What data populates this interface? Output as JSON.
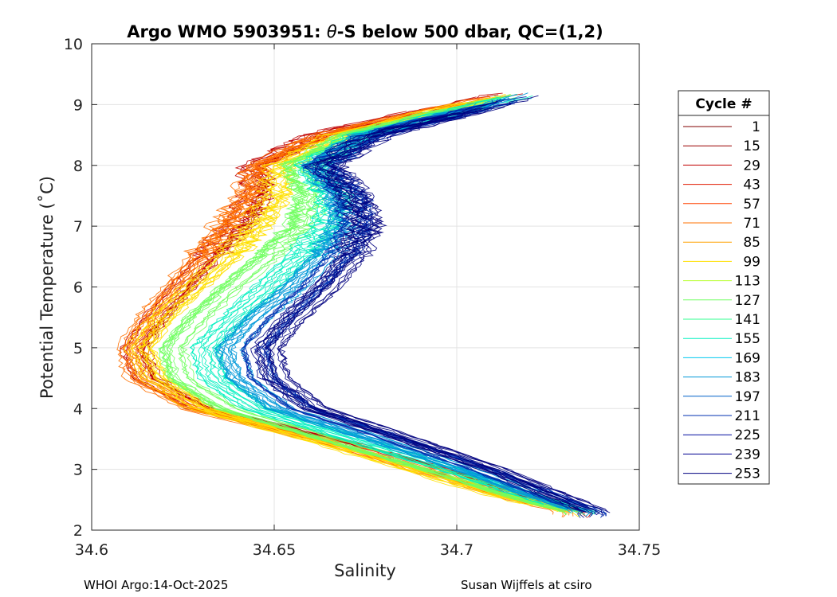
{
  "chart_data": {
    "type": "line",
    "title_prefix": "Argo WMO 5903951: ",
    "title_symbol": "θ",
    "title_suffix": "-S below 500 dbar,  QC=(1,2)",
    "xlabel": "Salinity",
    "ylabel": "Potential Temperature (˚C)",
    "xlim": [
      34.6,
      34.75
    ],
    "ylim": [
      2,
      10
    ],
    "xticks": [
      34.6,
      34.65,
      34.7,
      34.75
    ],
    "xtick_labels": [
      "34.6",
      "34.65",
      "34.7",
      "34.75"
    ],
    "yticks": [
      2,
      3,
      4,
      5,
      6,
      7,
      8,
      9,
      10
    ],
    "ytick_labels": [
      "2",
      "3",
      "4",
      "5",
      "6",
      "7",
      "8",
      "9",
      "10"
    ],
    "grid": true,
    "legend_title": "Cycle #",
    "legend_position": "outside-right",
    "legend": [
      {
        "label": "1",
        "color": "#800000"
      },
      {
        "label": "15",
        "color": "#9a0000"
      },
      {
        "label": "29",
        "color": "#c00000"
      },
      {
        "label": "43",
        "color": "#e01a00"
      },
      {
        "label": "57",
        "color": "#ff4000"
      },
      {
        "label": "71",
        "color": "#ff7000"
      },
      {
        "label": "85",
        "color": "#ffa000"
      },
      {
        "label": "99",
        "color": "#ffe000"
      },
      {
        "label": "113",
        "color": "#b8ff30"
      },
      {
        "label": "127",
        "color": "#70ff60"
      },
      {
        "label": "141",
        "color": "#30ff90"
      },
      {
        "label": "155",
        "color": "#00f0c0"
      },
      {
        "label": "169",
        "color": "#00c8f0"
      },
      {
        "label": "183",
        "color": "#0098d8"
      },
      {
        "label": "197",
        "color": "#0060c8"
      },
      {
        "label": "211",
        "color": "#0030b0"
      },
      {
        "label": "225",
        "color": "#000ca0"
      },
      {
        "label": "239",
        "color": "#000090"
      },
      {
        "label": "253",
        "color": "#000080"
      }
    ],
    "envelope": {
      "description": "representative theta-S curve per group (salinity at potential temperature)",
      "theta": [
        2.3,
        2.6,
        3.0,
        3.5,
        4.0,
        4.5,
        5.0,
        5.5,
        6.0,
        6.5,
        7.0,
        7.5,
        8.0,
        8.5,
        9.0,
        9.2
      ],
      "groups": [
        {
          "color": "#c00000",
          "salinity": [
            34.733,
            34.715,
            34.695,
            34.665,
            34.63,
            34.615,
            34.612,
            34.618,
            34.625,
            34.632,
            34.64,
            34.645,
            34.645,
            34.662,
            34.7,
            34.715
          ]
        },
        {
          "color": "#ff7000",
          "salinity": [
            34.731,
            34.712,
            34.69,
            34.662,
            34.628,
            34.613,
            34.611,
            34.616,
            34.623,
            34.63,
            34.637,
            34.643,
            34.646,
            34.664,
            34.7,
            34.716
          ]
        },
        {
          "color": "#ffe000",
          "salinity": [
            34.73,
            34.71,
            34.688,
            34.66,
            34.63,
            34.617,
            34.613,
            34.619,
            34.628,
            34.637,
            34.645,
            34.65,
            34.651,
            34.668,
            34.702,
            34.718
          ]
        },
        {
          "color": "#70ff60",
          "salinity": [
            34.732,
            34.714,
            34.693,
            34.665,
            34.637,
            34.624,
            34.622,
            34.629,
            34.638,
            34.648,
            34.657,
            34.66,
            34.656,
            34.671,
            34.705,
            34.719
          ]
        },
        {
          "color": "#00f0c0",
          "salinity": [
            34.734,
            34.718,
            34.698,
            34.672,
            34.645,
            34.633,
            34.631,
            34.639,
            34.648,
            34.657,
            34.665,
            34.666,
            34.66,
            34.674,
            34.708,
            34.72
          ]
        },
        {
          "color": "#0098d8",
          "salinity": [
            34.736,
            34.721,
            34.703,
            34.678,
            34.652,
            34.641,
            34.638,
            34.646,
            34.656,
            34.664,
            34.67,
            34.669,
            34.662,
            34.676,
            34.71,
            34.721
          ]
        },
        {
          "color": "#0030b0",
          "salinity": [
            34.737,
            34.724,
            34.707,
            34.683,
            34.658,
            34.647,
            34.645,
            34.652,
            34.661,
            34.668,
            34.673,
            34.671,
            34.663,
            34.677,
            34.711,
            34.722
          ]
        },
        {
          "color": "#000080",
          "salinity": [
            34.738,
            34.726,
            34.71,
            34.686,
            34.661,
            34.65,
            34.648,
            34.655,
            34.664,
            34.671,
            34.675,
            34.672,
            34.664,
            34.678,
            34.712,
            34.722
          ]
        }
      ],
      "profiles_per_group": 14,
      "spread": 0.004
    }
  },
  "footer": {
    "left": "WHOI Argo:14-Oct-2025",
    "right": "Susan Wijffels at csiro"
  }
}
